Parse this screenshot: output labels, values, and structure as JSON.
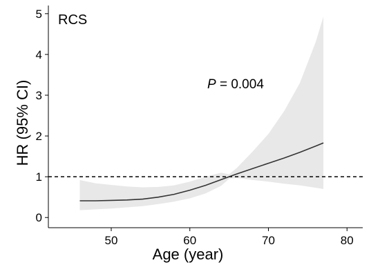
{
  "chart_data": {
    "type": "line",
    "panel_label": "RCS",
    "annotation": {
      "p_symbol": "P",
      "p_text": " = 0.004"
    },
    "xlabel": "Age (year)",
    "ylabel": "HR (95% CI)",
    "xlim": [
      42,
      82
    ],
    "ylim": [
      -0.25,
      5.2
    ],
    "x_ticks": [
      50,
      60,
      70,
      80
    ],
    "y_ticks": [
      0,
      1,
      2,
      3,
      4,
      5
    ],
    "reference_line": {
      "y": 1,
      "style": "dashed"
    },
    "grid": false,
    "series": [
      {
        "x": [
          46,
          48,
          50,
          52,
          54,
          56,
          58,
          60,
          62,
          64,
          65,
          66,
          68,
          70,
          72,
          74,
          76,
          77
        ],
        "hr": [
          0.41,
          0.41,
          0.42,
          0.43,
          0.45,
          0.5,
          0.57,
          0.67,
          0.79,
          0.93,
          1.0,
          1.07,
          1.2,
          1.33,
          1.46,
          1.6,
          1.75,
          1.83
        ],
        "lower": [
          0.18,
          0.2,
          0.22,
          0.25,
          0.28,
          0.33,
          0.39,
          0.47,
          0.59,
          0.78,
          0.95,
          0.97,
          0.92,
          0.88,
          0.83,
          0.79,
          0.73,
          0.7
        ],
        "upper": [
          0.92,
          0.84,
          0.8,
          0.76,
          0.74,
          0.75,
          0.79,
          0.88,
          1.0,
          1.1,
          1.06,
          1.22,
          1.62,
          2.05,
          2.61,
          3.3,
          4.3,
          4.93
        ]
      }
    ]
  }
}
